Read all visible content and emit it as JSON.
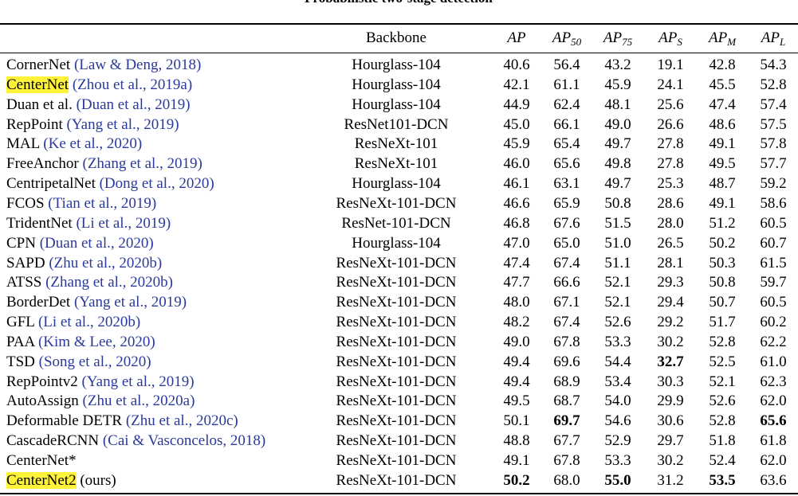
{
  "caption": "Probabilistic two-stage detection",
  "table": {
    "header": [
      {
        "text": "Backbone"
      },
      {
        "text": "AP"
      },
      {
        "text": "AP",
        "sub": "50"
      },
      {
        "text": "AP",
        "sub": "75"
      },
      {
        "text": "AP",
        "sub": "S"
      },
      {
        "text": "AP",
        "sub": "M"
      },
      {
        "text": "AP",
        "sub": "L"
      }
    ],
    "rows": [
      {
        "name": "CornerNet",
        "cite": "(Law & Deng, 2018)",
        "backbone": "Hourglass-104",
        "values": [
          "40.6",
          "56.4",
          "43.2",
          "19.1",
          "42.8",
          "54.3"
        ]
      },
      {
        "name": "CenterNet",
        "cite": "(Zhou et al., 2019a)",
        "backbone": "Hourglass-104",
        "values": [
          "42.1",
          "61.1",
          "45.9",
          "24.1",
          "45.5",
          "52.8"
        ],
        "highlight": true
      },
      {
        "name": "Duan et al.",
        "cite": "(Duan et al., 2019)",
        "backbone": "Hourglass-104",
        "values": [
          "44.9",
          "62.4",
          "48.1",
          "25.6",
          "47.4",
          "57.4"
        ]
      },
      {
        "name": "RepPoint",
        "cite": "(Yang et al., 2019)",
        "backbone": "ResNet101-DCN",
        "values": [
          "45.0",
          "66.1",
          "49.0",
          "26.6",
          "48.6",
          "57.5"
        ]
      },
      {
        "name": "MAL",
        "cite": "(Ke et al., 2020)",
        "backbone": "ResNeXt-101",
        "values": [
          "45.9",
          "65.4",
          "49.7",
          "27.8",
          "49.1",
          "57.8"
        ]
      },
      {
        "name": "FreeAnchor",
        "cite": "(Zhang et al., 2019)",
        "backbone": "ResNeXt-101",
        "values": [
          "46.0",
          "65.6",
          "49.8",
          "27.8",
          "49.5",
          "57.7"
        ]
      },
      {
        "name": "CentripetalNet",
        "cite": "(Dong et al., 2020)",
        "backbone": "Hourglass-104",
        "values": [
          "46.1",
          "63.1",
          "49.7",
          "25.3",
          "48.7",
          "59.2"
        ]
      },
      {
        "name": "FCOS",
        "cite": "(Tian et al., 2019)",
        "backbone": "ResNeXt-101-DCN",
        "values": [
          "46.6",
          "65.9",
          "50.8",
          "28.6",
          "49.1",
          "58.6"
        ]
      },
      {
        "name": "TridentNet",
        "cite": "(Li et al., 2019)",
        "backbone": "ResNet-101-DCN",
        "values": [
          "46.8",
          "67.6",
          "51.5",
          "28.0",
          "51.2",
          "60.5"
        ]
      },
      {
        "name": "CPN",
        "cite": "(Duan et al., 2020)",
        "backbone": "Hourglass-104",
        "values": [
          "47.0",
          "65.0",
          "51.0",
          "26.5",
          "50.2",
          "60.7"
        ]
      },
      {
        "name": "SAPD",
        "cite": "(Zhu et al., 2020b)",
        "backbone": "ResNeXt-101-DCN",
        "values": [
          "47.4",
          "67.4",
          "51.1",
          "28.1",
          "50.3",
          "61.5"
        ]
      },
      {
        "name": "ATSS",
        "cite": "(Zhang et al., 2020b)",
        "backbone": "ResNeXt-101-DCN",
        "values": [
          "47.7",
          "66.6",
          "52.1",
          "29.3",
          "50.8",
          "59.7"
        ]
      },
      {
        "name": "BorderDet",
        "cite": "(Yang et al., 2019)",
        "backbone": "ResNeXt-101-DCN",
        "values": [
          "48.0",
          "67.1",
          "52.1",
          "29.4",
          "50.7",
          "60.5"
        ]
      },
      {
        "name": "GFL",
        "cite": "(Li et al., 2020b)",
        "backbone": "ResNeXt-101-DCN",
        "values": [
          "48.2",
          "67.4",
          "52.6",
          "29.2",
          "51.7",
          "60.2"
        ]
      },
      {
        "name": "PAA",
        "cite": "(Kim & Lee, 2020)",
        "backbone": "ResNeXt-101-DCN",
        "values": [
          "49.0",
          "67.8",
          "53.3",
          "30.2",
          "52.8",
          "62.2"
        ]
      },
      {
        "name": "TSD",
        "cite": "(Song et al., 2020)",
        "backbone": "ResNeXt-101-DCN",
        "values": [
          "49.4",
          "69.6",
          "54.4",
          "32.7",
          "52.5",
          "61.0"
        ],
        "bold": [
          3
        ]
      },
      {
        "name": "RepPointv2",
        "cite": "(Yang et al., 2019)",
        "backbone": "ResNeXt-101-DCN",
        "values": [
          "49.4",
          "68.9",
          "53.4",
          "30.3",
          "52.1",
          "62.3"
        ]
      },
      {
        "name": "AutoAssign",
        "cite": "(Zhu et al., 2020a)",
        "backbone": "ResNeXt-101-DCN",
        "values": [
          "49.5",
          "68.7",
          "54.0",
          "29.9",
          "52.6",
          "62.0"
        ]
      },
      {
        "name": "Deformable DETR",
        "cite": "(Zhu et al., 2020c)",
        "backbone": "ResNeXt-101-DCN",
        "values": [
          "50.1",
          "69.7",
          "54.6",
          "30.6",
          "52.8",
          "65.6"
        ],
        "bold": [
          1,
          5
        ]
      },
      {
        "name": "CascadeRCNN",
        "cite": "(Cai & Vasconcelos, 2018)",
        "backbone": "ResNeXt-101-DCN",
        "values": [
          "48.8",
          "67.7",
          "52.9",
          "29.7",
          "51.8",
          "61.8"
        ]
      },
      {
        "name": "CenterNet*",
        "backbone": "ResNeXt-101-DCN",
        "values": [
          "49.1",
          "67.8",
          "53.3",
          "30.2",
          "52.4",
          "62.0"
        ]
      },
      {
        "name": "CenterNet2",
        "note": "(ours)",
        "backbone": "ResNeXt-101-DCN",
        "values": [
          "50.2",
          "68.0",
          "55.0",
          "31.2",
          "53.5",
          "63.6"
        ],
        "bold": [
          0,
          2,
          4
        ],
        "highlight": true
      }
    ]
  }
}
